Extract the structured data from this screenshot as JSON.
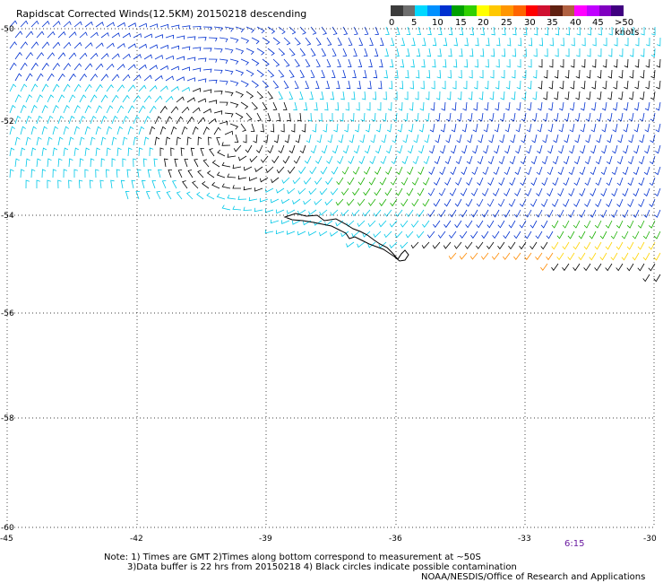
{
  "title": "Rapidscat Corrected Winds(12.5KM) 20150218 descending",
  "colorbar": {
    "labels": [
      "0",
      "5",
      "10",
      "15",
      "20",
      "25",
      "30",
      "35",
      "40",
      "45",
      ">50 knots"
    ],
    "colors": [
      "#3c3c3c",
      "#6e6e6e",
      "#00d8ff",
      "#0090ff",
      "#0030d0",
      "#00a000",
      "#30d000",
      "#ffff00",
      "#ffc800",
      "#ff9600",
      "#ff6400",
      "#ff0000",
      "#d01030",
      "#602010",
      "#b06040",
      "#ff00ff",
      "#c000ff",
      "#8000c0",
      "#400080"
    ]
  },
  "map": {
    "lat_labels": [
      "-50",
      "-52",
      "-54",
      "-56",
      "-58",
      "-60"
    ],
    "lon_labels": [
      "-45",
      "-42",
      "-39",
      "-36",
      "-33",
      "-30"
    ]
  },
  "time_label": "6:15",
  "notes": {
    "line1": "Note: 1) Times are GMT 2)Times along bottom correspond to measurement at ~50S",
    "line2": "3)Data buffer is 22 hrs from 20150218 4) Black circles indicate possible contamination",
    "line3": "NOAA/NESDIS/Office of Research and Applications"
  }
}
